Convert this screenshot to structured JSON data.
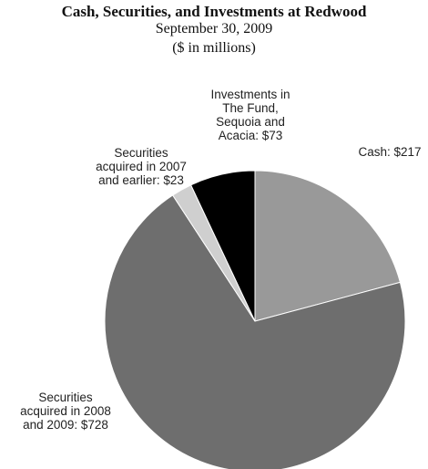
{
  "chart_data": {
    "type": "pie",
    "title": "Cash, Securities, and Investments at Redwood",
    "subtitle": "September 30, 2009",
    "units": "($ in millions)",
    "slices": [
      {
        "label": "Cash: $217",
        "value": 217,
        "color": "#999999"
      },
      {
        "label": "Securities acquired in 2008 and 2009: $728",
        "value": 728,
        "color": "#6e6e6e"
      },
      {
        "label": "Securities acquired in 2007 and earlier: $23",
        "value": 23,
        "color": "#cfcfcf"
      },
      {
        "label": "Investments in The Fund, Sequoia and Acacia: $73",
        "value": 73,
        "color": "#000000"
      }
    ],
    "label_lines": [
      [
        "Cash: $217"
      ],
      [
        "Securities",
        "acquired in 2008",
        "and 2009: $728"
      ],
      [
        "Securities",
        "acquired in 2007",
        "and earlier: $23"
      ],
      [
        "Investments in",
        "The Fund,",
        "Sequoia and",
        "Acacia: $73"
      ]
    ]
  }
}
